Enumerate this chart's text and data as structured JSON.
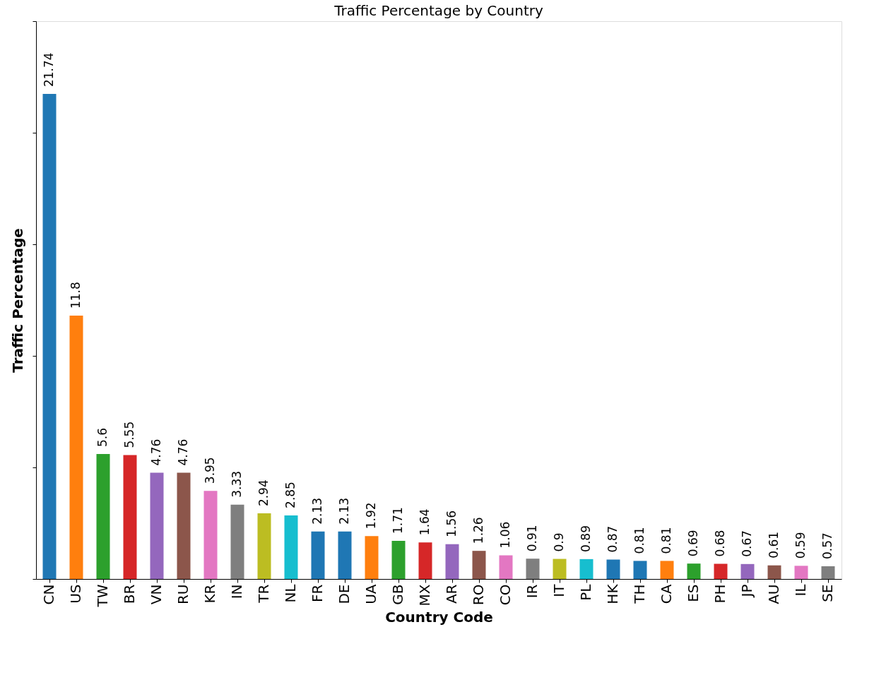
{
  "chart_data": {
    "type": "bar",
    "title": "Traffic Percentage by Country",
    "xlabel": "Country Code",
    "ylabel": "Traffic Percentage",
    "categories": [
      "CN",
      "US",
      "TW",
      "BR",
      "VN",
      "RU",
      "KR",
      "IN",
      "TR",
      "NL",
      "FR",
      "DE",
      "UA",
      "GB",
      "MX",
      "AR",
      "RO",
      "CO",
      "IR",
      "IT",
      "PL",
      "HK",
      "TH",
      "CA",
      "ES",
      "PH",
      "JP",
      "AU",
      "IL",
      "SE"
    ],
    "values": [
      21.74,
      11.8,
      5.6,
      5.55,
      4.76,
      4.76,
      3.95,
      3.33,
      2.94,
      2.85,
      2.13,
      2.13,
      1.92,
      1.71,
      1.64,
      1.56,
      1.26,
      1.06,
      0.91,
      0.9,
      0.89,
      0.87,
      0.81,
      0.81,
      0.69,
      0.68,
      0.67,
      0.61,
      0.59,
      0.57
    ],
    "colors": [
      "#1f77b4",
      "#ff7f0e",
      "#2ca02c",
      "#d62728",
      "#9467bd",
      "#8c564b",
      "#e377c2",
      "#7f7f7f",
      "#bcbd22",
      "#17becf",
      "#1f77b4",
      "#1f77b4",
      "#ff7f0e",
      "#2ca02c",
      "#d62728",
      "#9467bd",
      "#8c564b",
      "#e377c2",
      "#7f7f7f",
      "#bcbd22",
      "#17becf",
      "#1f77b4",
      "#1f77b4",
      "#ff7f0e",
      "#2ca02c",
      "#d62728",
      "#9467bd",
      "#8c564b",
      "#e377c2",
      "#7f7f7f"
    ],
    "ylim": [
      0,
      25
    ],
    "yticks": [
      {
        "value": 0,
        "label": null
      },
      {
        "value": 5,
        "label": null
      },
      {
        "value": 10,
        "label": null
      },
      {
        "value": 15,
        "label": null
      },
      {
        "value": 20,
        "label": null
      },
      {
        "value": 25,
        "label": null
      }
    ],
    "tick_labels": "x",
    "data_labels": true,
    "grid": false,
    "legend": false
  }
}
